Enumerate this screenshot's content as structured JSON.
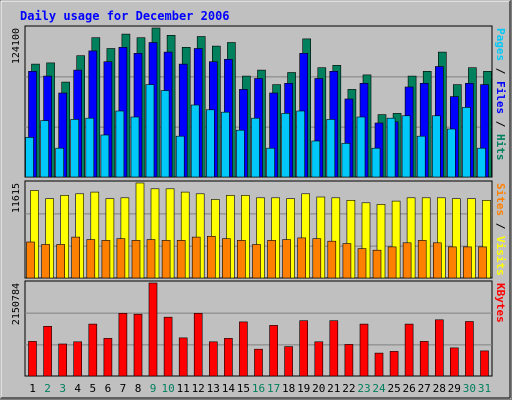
{
  "chart_data": {
    "type": "bar",
    "title": "Daily usage for December 2006",
    "categories": [
      "1",
      "2",
      "3",
      "4",
      "5",
      "6",
      "7",
      "8",
      "9",
      "10",
      "11",
      "12",
      "13",
      "14",
      "15",
      "16",
      "17",
      "18",
      "19",
      "20",
      "21",
      "22",
      "23",
      "24",
      "25",
      "26",
      "27",
      "28",
      "29",
      "30",
      "31"
    ],
    "weekend_days": [
      "2",
      "3",
      "9",
      "10",
      "16",
      "17",
      "23",
      "24",
      "30",
      "31"
    ],
    "colors": {
      "background": "#c0c0c0",
      "plot_area": "#c0c0c0",
      "title": "#0000ff",
      "weekday_label": "#000000",
      "weekend_label": "#00805c",
      "hits": "#00805c",
      "files": "#0000ff",
      "pages": "#00c8f8",
      "visits": "#ffff00",
      "sites": "#ff8000",
      "kbytes": "#ff0000"
    },
    "panels": [
      {
        "ymax_label": "124100",
        "ylim": [
          0,
          124100
        ],
        "right_label": [
          {
            "text": "Pages",
            "color": "#00c8f8"
          },
          {
            "text": " / ",
            "color": "#000000"
          },
          {
            "text": "Files",
            "color": "#0000ff"
          },
          {
            "text": " / ",
            "color": "#000000"
          },
          {
            "text": "Hits",
            "color": "#00805c"
          }
        ],
        "series": [
          {
            "name": "Hits",
            "values": [
              94000,
              95000,
              79000,
              101000,
              116000,
              107000,
              119000,
              116000,
              124100,
              118000,
              108000,
              117000,
              109000,
              112000,
              84000,
              89000,
              77000,
              87000,
              115000,
              91000,
              93000,
              73000,
              85000,
              52000,
              53000,
              84000,
              88000,
              104000,
              77000,
              91000,
              88000
            ]
          },
          {
            "name": "Files",
            "values": [
              88000,
              84000,
              70000,
              89000,
              105000,
              96000,
              108000,
              103000,
              112000,
              104000,
              94000,
              107000,
              96000,
              98000,
              73000,
              82000,
              70000,
              78000,
              103000,
              82000,
              88000,
              65000,
              78000,
              45000,
              46000,
              75000,
              78000,
              92000,
              67000,
              78000,
              77000
            ]
          },
          {
            "name": "Pages",
            "values": [
              33000,
              47000,
              24000,
              48000,
              49000,
              35000,
              55000,
              50000,
              77000,
              72000,
              34000,
              60000,
              56000,
              54000,
              39000,
              49000,
              24000,
              53000,
              55000,
              30000,
              48000,
              28000,
              50000,
              24000,
              49000,
              51000,
              34000,
              51000,
              40000,
              58000,
              24000
            ]
          }
        ]
      },
      {
        "ymax_label": "11615",
        "ylim": [
          0,
          11615
        ],
        "right_label": [
          {
            "text": "Sites",
            "color": "#ff8000"
          },
          {
            "text": " / ",
            "color": "#000000"
          },
          {
            "text": "Visits",
            "color": "#ffff00"
          }
        ],
        "series": [
          {
            "name": "Visits",
            "values": [
              10700,
              9700,
              10100,
              10300,
              10500,
              9700,
              9800,
              11615,
              10900,
              10900,
              10500,
              10300,
              9600,
              10100,
              10100,
              9800,
              9800,
              9700,
              10300,
              9900,
              9800,
              9500,
              9200,
              9000,
              9400,
              9800,
              9800,
              9800,
              9700,
              9700,
              9500
            ]
          },
          {
            "name": "Sites",
            "values": [
              4400,
              4100,
              4100,
              5000,
              4700,
              4600,
              4800,
              4600,
              4700,
              4600,
              4600,
              5000,
              5100,
              4800,
              4600,
              4100,
              4600,
              4700,
              4900,
              4800,
              4500,
              4200,
              3600,
              3400,
              3800,
              4300,
              4600,
              4300,
              3800,
              3800,
              3800
            ]
          }
        ]
      },
      {
        "ymax_label": "2150784",
        "ylim": [
          0,
          2150784
        ],
        "right_label": [
          {
            "text": "KBytes",
            "color": "#ff0000"
          }
        ],
        "series": [
          {
            "name": "KBytes",
            "values": [
              800000,
              1150000,
              740000,
              790000,
              1200000,
              870000,
              1450000,
              1430000,
              2150784,
              1360000,
              880000,
              1450000,
              790000,
              870000,
              1250000,
              620000,
              1170000,
              680000,
              1280000,
              790000,
              1280000,
              730000,
              1200000,
              530000,
              570000,
              1200000,
              800000,
              1300000,
              650000,
              1260000,
              580000
            ]
          }
        ]
      }
    ]
  }
}
